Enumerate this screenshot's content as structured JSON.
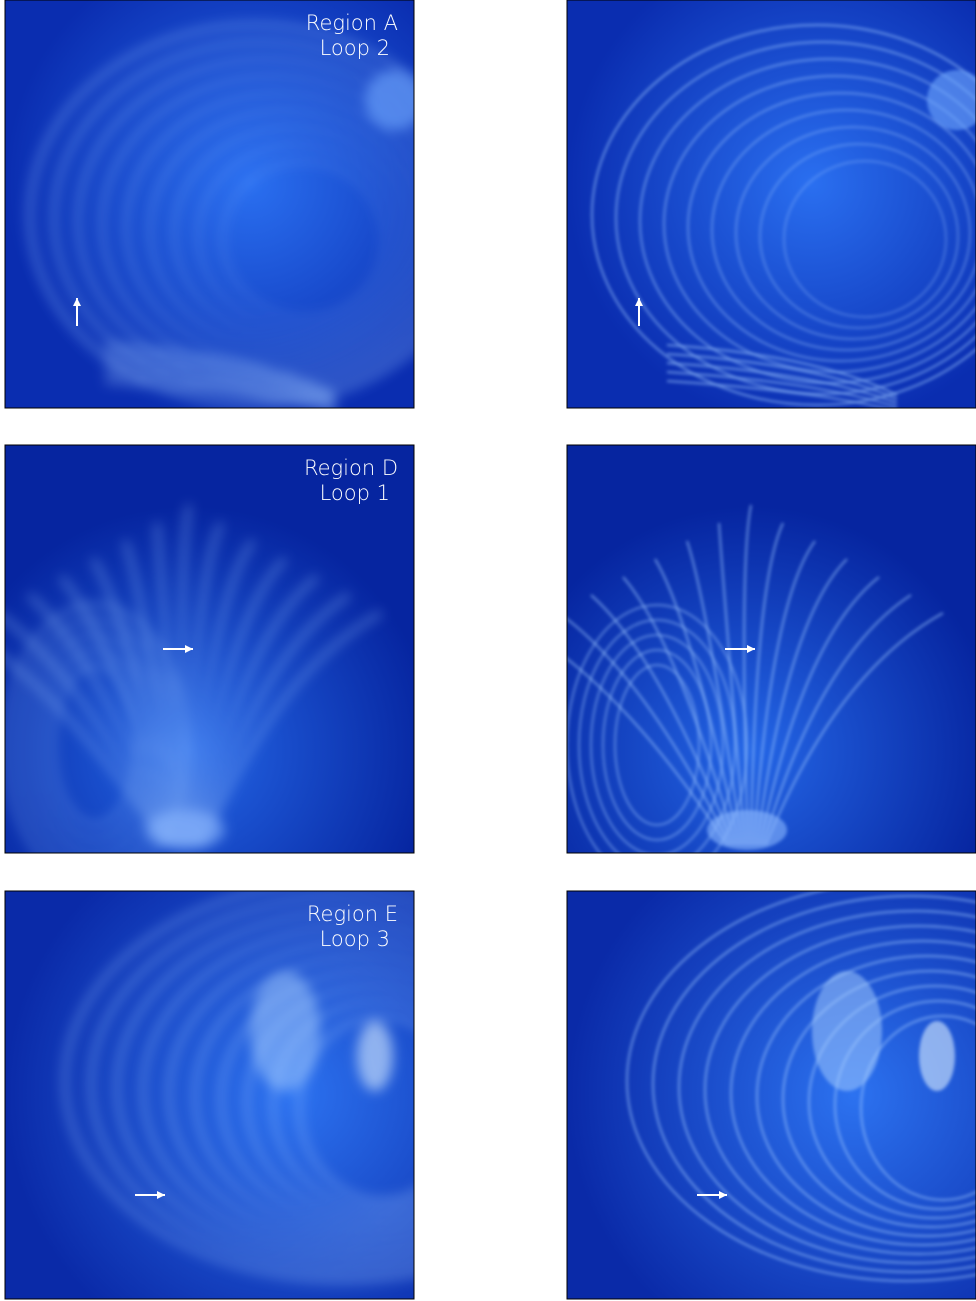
{
  "panels": [
    {
      "region": "Region A",
      "loop": "Loop 2"
    },
    {
      "region": "Region D",
      "loop": "Loop 1"
    },
    {
      "region": "Region E",
      "loop": "Loop 3"
    }
  ]
}
